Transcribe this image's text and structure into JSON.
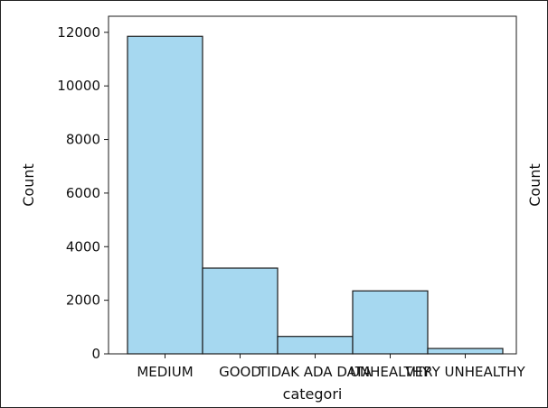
{
  "chart_data": {
    "type": "bar",
    "title": "",
    "xlabel": "categori",
    "ylabel": "Count",
    "right_label": "Count",
    "categories": [
      "MEDIUM",
      "GOOD",
      "TIDAK ADA DATA",
      "UNHEALTHY",
      "VERY UNHEALTHY"
    ],
    "values": [
      11850,
      3200,
      650,
      2350,
      200
    ],
    "yticks": [
      0,
      2000,
      4000,
      6000,
      8000,
      10000,
      12000
    ],
    "ylim": [
      0,
      12600
    ],
    "grid": false,
    "legend": "none",
    "bar_color": "#a6d8f0",
    "edge_color": "#1a1a1a"
  }
}
